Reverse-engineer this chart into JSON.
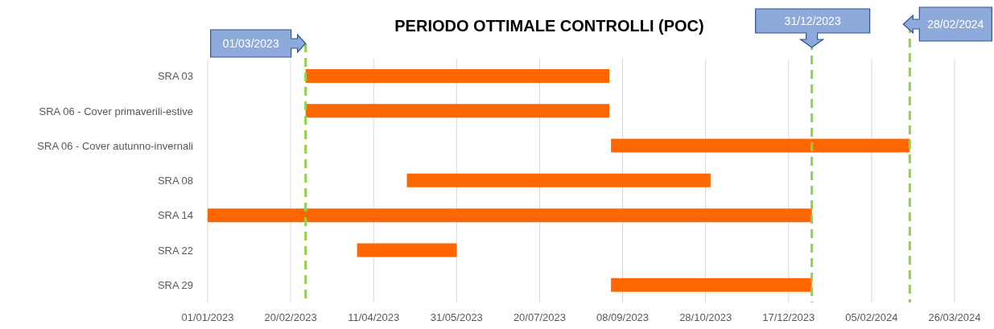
{
  "chart_data": {
    "type": "bar",
    "orientation": "horizontal",
    "title": "PERIODO OTTIMALE CONTROLLI (POC)",
    "categories": [
      "SRA 03",
      "SRA 06 - Cover primaverili-estive",
      "SRA 06 - Cover autunno-invernali",
      "SRA 08",
      "SRA 14",
      "SRA 22",
      "SRA 29"
    ],
    "base": [
      19417,
      19417,
      19601,
      19478,
      19358,
      19448,
      19601
    ],
    "values": [
      183,
      183,
      180,
      183,
      364,
      60,
      121
    ],
    "color": "#ff6600",
    "xlim": [
      "2023-01-01",
      "2024-03-26"
    ],
    "xticks": [
      {
        "value": "2023-01-01",
        "label": "01/01/2023"
      },
      {
        "value": "2023-02-20",
        "label": "20/02/2023"
      },
      {
        "value": "2023-04-11",
        "label": "11/04/2023"
      },
      {
        "value": "2023-05-31",
        "label": "31/05/2023"
      },
      {
        "value": "2023-07-20",
        "label": "20/07/2023"
      },
      {
        "value": "2023-09-08",
        "label": "08/09/2023"
      },
      {
        "value": "2023-10-28",
        "label": "28/10/2023"
      },
      {
        "value": "2023-12-17",
        "label": "17/12/2023"
      },
      {
        "value": "2024-02-05",
        "label": "05/02/2024"
      },
      {
        "value": "2024-03-26",
        "label": "26/03/2024"
      }
    ],
    "grid": "x",
    "ref_lines": [
      {
        "axis": "x",
        "value": "2023-03-01",
        "label": "01/03/2023",
        "color": "#92d050",
        "line_style": "dashed"
      },
      {
        "axis": "x",
        "value": "2023-12-31",
        "label": "31/12/2023",
        "color": "#92d050",
        "line_style": "dashed"
      },
      {
        "axis": "x",
        "value": "2024-02-28",
        "label": "28/02/2024",
        "color": "#92d050",
        "line_style": "dashed"
      }
    ]
  }
}
